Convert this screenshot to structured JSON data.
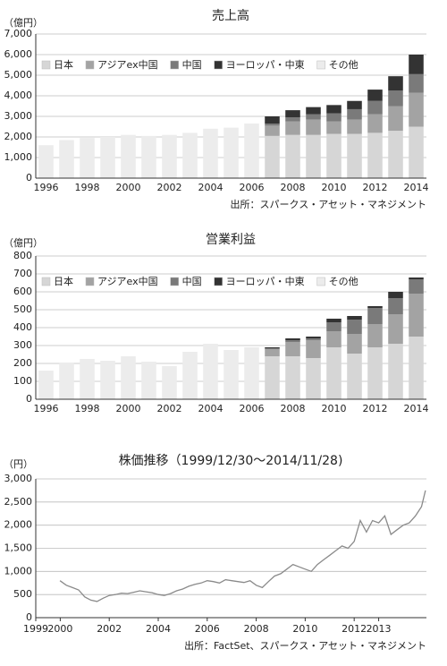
{
  "chart_data": [
    {
      "type": "bar",
      "title": "売上高",
      "y_unit": "（億円）",
      "source": "出所：スパークス・アセット・マネジメント",
      "categories": [
        "1996",
        null,
        "1998",
        null,
        "2000",
        null,
        "2002",
        null,
        "2004",
        null,
        "2006",
        null,
        "2008",
        null,
        "2010",
        null,
        "2012",
        null,
        "2014"
      ],
      "ylim": [
        0,
        7000
      ],
      "yticks": [
        0,
        {
          "value": 1000,
          "label": "1,000"
        },
        {
          "value": 2000,
          "label": "2,000"
        },
        {
          "value": 3000,
          "label": "3,000"
        },
        {
          "value": 4000,
          "label": "4,000"
        },
        {
          "value": 5000,
          "label": "5,000"
        },
        {
          "value": 6000,
          "label": "6,000"
        },
        {
          "value": 7000,
          "label": "7,000"
        }
      ],
      "grid": true,
      "legend": "upper left",
      "series": [
        {
          "name": "日本",
          "color": "#d6d6d6",
          "values": [
            null,
            null,
            null,
            null,
            null,
            null,
            null,
            null,
            null,
            null,
            null,
            2050,
            2100,
            2100,
            2150,
            2150,
            2200,
            2300,
            2500
          ]
        },
        {
          "name": "アジアex中国",
          "color": "#a3a3a3",
          "values": [
            null,
            null,
            null,
            null,
            null,
            null,
            null,
            null,
            null,
            null,
            null,
            500,
            650,
            750,
            600,
            700,
            900,
            1200,
            1650
          ]
        },
        {
          "name": "中国",
          "color": "#7a7a7a",
          "values": [
            null,
            null,
            null,
            null,
            null,
            null,
            null,
            null,
            null,
            null,
            null,
            100,
            200,
            250,
            400,
            500,
            650,
            750,
            900
          ]
        },
        {
          "name": "ヨーロッパ・中東",
          "color": "#333333",
          "values": [
            null,
            null,
            null,
            null,
            null,
            null,
            null,
            null,
            null,
            null,
            null,
            350,
            350,
            350,
            400,
            400,
            550,
            700,
            950
          ]
        },
        {
          "name": "その他",
          "color": "#ececec",
          "values": [
            1600,
            1850,
            1950,
            2000,
            2100,
            2050,
            2100,
            2200,
            2400,
            2450,
            2650,
            null,
            null,
            null,
            null,
            null,
            null,
            null,
            null
          ]
        }
      ]
    },
    {
      "type": "bar",
      "title": "営業利益",
      "y_unit": "（億円）",
      "categories": [
        "1996",
        null,
        "1998",
        null,
        "2000",
        null,
        "2002",
        null,
        "2004",
        null,
        "2006",
        null,
        "2008",
        null,
        "2010",
        null,
        "2012",
        null,
        "2014"
      ],
      "ylim": [
        0,
        800
      ],
      "yticks": [
        0,
        100,
        200,
        300,
        400,
        500,
        600,
        700,
        800
      ],
      "grid": true,
      "legend": "upper left",
      "series": [
        {
          "name": "日本",
          "color": "#d6d6d6",
          "values": [
            null,
            null,
            null,
            null,
            null,
            null,
            null,
            null,
            null,
            null,
            null,
            240,
            240,
            230,
            290,
            255,
            290,
            310,
            350
          ]
        },
        {
          "name": "アジアex中国",
          "color": "#a3a3a3",
          "values": [
            null,
            null,
            null,
            null,
            null,
            null,
            null,
            null,
            null,
            null,
            null,
            40,
            80,
            100,
            90,
            110,
            130,
            165,
            240
          ]
        },
        {
          "name": "中国",
          "color": "#7a7a7a",
          "values": [
            null,
            null,
            null,
            null,
            null,
            null,
            null,
            null,
            null,
            null,
            null,
            5,
            10,
            10,
            50,
            80,
            90,
            90,
            80
          ]
        },
        {
          "name": "ヨーロッパ・中東",
          "color": "#333333",
          "values": [
            null,
            null,
            null,
            null,
            null,
            null,
            null,
            null,
            null,
            null,
            null,
            5,
            10,
            10,
            20,
            20,
            10,
            35,
            10
          ]
        },
        {
          "name": "その他",
          "color": "#ececec",
          "values": [
            160,
            205,
            225,
            215,
            240,
            210,
            185,
            265,
            310,
            275,
            290,
            null,
            null,
            null,
            null,
            null,
            null,
            null,
            null
          ]
        }
      ]
    },
    {
      "type": "line",
      "title": "株価推移（1999/12/30〜2014/11/28)",
      "y_unit": "（円）",
      "source": "出所：FactSet、スパークス・アセット・マネジメント",
      "color": "#8a8a8a",
      "xlim": [
        1999,
        2014.95
      ],
      "xticks": [
        1999,
        2000,
        2002,
        2004,
        2006,
        2008,
        2010,
        2012,
        2013
      ],
      "ylim": [
        0,
        3000
      ],
      "yticks": [
        0,
        500,
        {
          "value": 1000,
          "label": "1,000"
        },
        {
          "value": 1500,
          "label": "1,500"
        },
        {
          "value": 2000,
          "label": "2,000"
        },
        {
          "value": 2500,
          "label": "2,500"
        },
        {
          "value": 3000,
          "label": "3,000"
        }
      ],
      "grid": true,
      "x": [
        1999.99,
        2000.25,
        2000.5,
        2000.75,
        2001.0,
        2001.25,
        2001.5,
        2001.75,
        2002.0,
        2002.25,
        2002.5,
        2002.75,
        2003.0,
        2003.25,
        2003.5,
        2003.75,
        2004.0,
        2004.25,
        2004.5,
        2004.75,
        2005.0,
        2005.25,
        2005.5,
        2005.75,
        2006.0,
        2006.25,
        2006.5,
        2006.75,
        2007.0,
        2007.25,
        2007.5,
        2007.75,
        2008.0,
        2008.25,
        2008.5,
        2008.75,
        2009.0,
        2009.25,
        2009.5,
        2009.75,
        2010.0,
        2010.25,
        2010.5,
        2010.75,
        2011.0,
        2011.25,
        2011.5,
        2011.75,
        2012.0,
        2012.25,
        2012.5,
        2012.75,
        2013.0,
        2013.25,
        2013.5,
        2013.75,
        2014.0,
        2014.25,
        2014.5,
        2014.75,
        2014.91
      ],
      "values": [
        800,
        700,
        650,
        600,
        450,
        380,
        350,
        420,
        480,
        500,
        530,
        520,
        550,
        580,
        560,
        540,
        500,
        480,
        520,
        580,
        620,
        680,
        720,
        750,
        800,
        780,
        750,
        820,
        800,
        780,
        760,
        800,
        700,
        650,
        780,
        900,
        950,
        1050,
        1150,
        1100,
        1050,
        1000,
        1150,
        1250,
        1350,
        1450,
        1550,
        1500,
        1650,
        2100,
        1850,
        2100,
        2050,
        2200,
        1800,
        1900,
        2000,
        2050,
        2200,
        2400,
        2750
      ]
    }
  ]
}
